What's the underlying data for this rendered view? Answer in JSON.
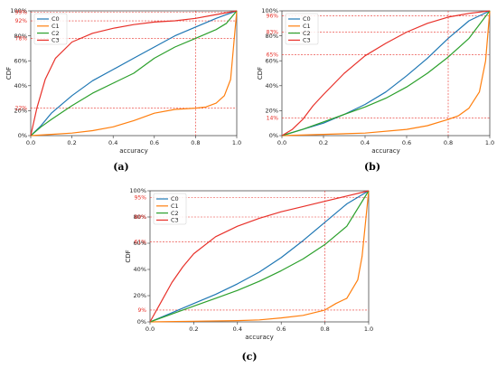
{
  "colors": {
    "C0": "#1f77b4",
    "C1": "#ff7f0e",
    "C2": "#2ca02c",
    "C3": "#e8312a",
    "ref": "#e8312a"
  },
  "chart_data": [
    {
      "type": "line",
      "panel_label": "(a)",
      "xlabel": "accuracy",
      "ylabel": "CDF",
      "xlim": [
        0,
        1
      ],
      "ylim": [
        0,
        100
      ],
      "x_ticks": [
        "0.0",
        "0.2",
        "0.4",
        "0.6",
        "0.8",
        "1.0"
      ],
      "y_ticks": [
        "0%",
        "20%",
        "40%",
        "60%",
        "80%",
        "100%"
      ],
      "legend": "top-left",
      "reference_x": 0.8,
      "reference_labels": [
        {
          "value": 99,
          "text": "99%"
        },
        {
          "value": 92,
          "text": "92%"
        },
        {
          "value": 78,
          "text": "78%"
        },
        {
          "value": 22,
          "text": "22%"
        }
      ],
      "series": [
        {
          "name": "C0",
          "x": [
            0,
            0.05,
            0.1,
            0.2,
            0.3,
            0.4,
            0.5,
            0.6,
            0.7,
            0.8,
            0.9,
            0.95,
            1.0
          ],
          "y": [
            0,
            8,
            18,
            32,
            44,
            53,
            62,
            71,
            80,
            87,
            94,
            97,
            100
          ]
        },
        {
          "name": "C1",
          "x": [
            0,
            0.1,
            0.2,
            0.3,
            0.4,
            0.5,
            0.6,
            0.7,
            0.8,
            0.85,
            0.9,
            0.94,
            0.97,
            1.0
          ],
          "y": [
            0,
            1,
            2,
            4,
            7,
            12,
            18,
            21,
            22,
            23,
            26,
            32,
            45,
            100
          ]
        },
        {
          "name": "C2",
          "x": [
            0,
            0.05,
            0.1,
            0.2,
            0.3,
            0.4,
            0.5,
            0.6,
            0.7,
            0.8,
            0.9,
            0.95,
            1.0
          ],
          "y": [
            0,
            7,
            13,
            24,
            34,
            42,
            50,
            62,
            71,
            78,
            85,
            90,
            100
          ]
        },
        {
          "name": "C3",
          "x": [
            0,
            0.03,
            0.07,
            0.12,
            0.2,
            0.3,
            0.4,
            0.5,
            0.6,
            0.7,
            0.8,
            0.9,
            1.0
          ],
          "y": [
            0,
            22,
            45,
            62,
            75,
            82,
            86,
            89,
            91,
            92,
            94,
            97,
            100
          ]
        }
      ]
    },
    {
      "type": "line",
      "panel_label": "(b)",
      "xlabel": "accuracy",
      "ylabel": "CDF",
      "xlim": [
        0,
        1
      ],
      "ylim": [
        0,
        100
      ],
      "x_ticks": [
        "0.0",
        "0.2",
        "0.4",
        "0.6",
        "0.8",
        "1.0"
      ],
      "y_ticks": [
        "0%",
        "20%",
        "40%",
        "60%",
        "80%",
        "100%"
      ],
      "legend": "top-left",
      "reference_x": 0.8,
      "reference_labels": [
        {
          "value": 96,
          "text": "96%"
        },
        {
          "value": 83,
          "text": "83%"
        },
        {
          "value": 65,
          "text": "65%"
        },
        {
          "value": 14,
          "text": "14%"
        }
      ],
      "series": [
        {
          "name": "C0",
          "x": [
            0,
            0.1,
            0.2,
            0.3,
            0.4,
            0.5,
            0.6,
            0.7,
            0.8,
            0.9,
            1.0
          ],
          "y": [
            0,
            5,
            10,
            17,
            25,
            35,
            48,
            62,
            78,
            92,
            100
          ]
        },
        {
          "name": "C1",
          "x": [
            0,
            0.2,
            0.4,
            0.6,
            0.7,
            0.8,
            0.85,
            0.9,
            0.95,
            0.98,
            1.0
          ],
          "y": [
            0,
            1,
            2,
            5,
            8,
            13,
            16,
            22,
            35,
            60,
            100
          ]
        },
        {
          "name": "C2",
          "x": [
            0,
            0.1,
            0.2,
            0.3,
            0.4,
            0.5,
            0.6,
            0.7,
            0.8,
            0.9,
            1.0
          ],
          "y": [
            0,
            5,
            11,
            17,
            23,
            30,
            39,
            50,
            63,
            78,
            100
          ]
        },
        {
          "name": "C3",
          "x": [
            0,
            0.05,
            0.1,
            0.15,
            0.2,
            0.3,
            0.4,
            0.5,
            0.6,
            0.7,
            0.8,
            0.9,
            1.0
          ],
          "y": [
            0,
            5,
            13,
            24,
            33,
            50,
            64,
            74,
            83,
            90,
            95,
            98,
            100
          ]
        }
      ]
    },
    {
      "type": "line",
      "panel_label": "(c)",
      "xlabel": "accuracy",
      "ylabel": "CDF",
      "xlim": [
        0,
        1
      ],
      "ylim": [
        0,
        100
      ],
      "x_ticks": [
        "0.0",
        "0.2",
        "0.4",
        "0.6",
        "0.8",
        "1.0"
      ],
      "y_ticks": [
        "0%",
        "20%",
        "40%",
        "60%",
        "80%",
        "100%"
      ],
      "legend": "top-left",
      "reference_x": 0.8,
      "reference_labels": [
        {
          "value": 95,
          "text": "95%"
        },
        {
          "value": 80,
          "text": "80%"
        },
        {
          "value": 61,
          "text": "61%"
        },
        {
          "value": 9,
          "text": "9%"
        }
      ],
      "series": [
        {
          "name": "C0",
          "x": [
            0,
            0.1,
            0.2,
            0.3,
            0.4,
            0.5,
            0.6,
            0.7,
            0.8,
            0.9,
            1.0
          ],
          "y": [
            0,
            7,
            14,
            21,
            29,
            38,
            49,
            62,
            76,
            90,
            100
          ]
        },
        {
          "name": "C1",
          "x": [
            0,
            0.2,
            0.4,
            0.5,
            0.6,
            0.7,
            0.8,
            0.85,
            0.9,
            0.95,
            0.97,
            1.0
          ],
          "y": [
            0,
            0.5,
            1,
            1.5,
            3,
            5,
            9,
            14,
            18,
            32,
            50,
            100
          ]
        },
        {
          "name": "C2",
          "x": [
            0,
            0.1,
            0.2,
            0.3,
            0.4,
            0.5,
            0.6,
            0.7,
            0.8,
            0.9,
            1.0
          ],
          "y": [
            0,
            6,
            12,
            18,
            24,
            31,
            39,
            48,
            59,
            73,
            100
          ]
        },
        {
          "name": "C3",
          "x": [
            0,
            0.05,
            0.1,
            0.15,
            0.2,
            0.3,
            0.4,
            0.5,
            0.6,
            0.7,
            0.8,
            0.9,
            1.0
          ],
          "y": [
            0,
            15,
            30,
            42,
            52,
            65,
            73,
            79,
            84,
            88,
            92,
            96,
            100
          ]
        }
      ]
    }
  ]
}
